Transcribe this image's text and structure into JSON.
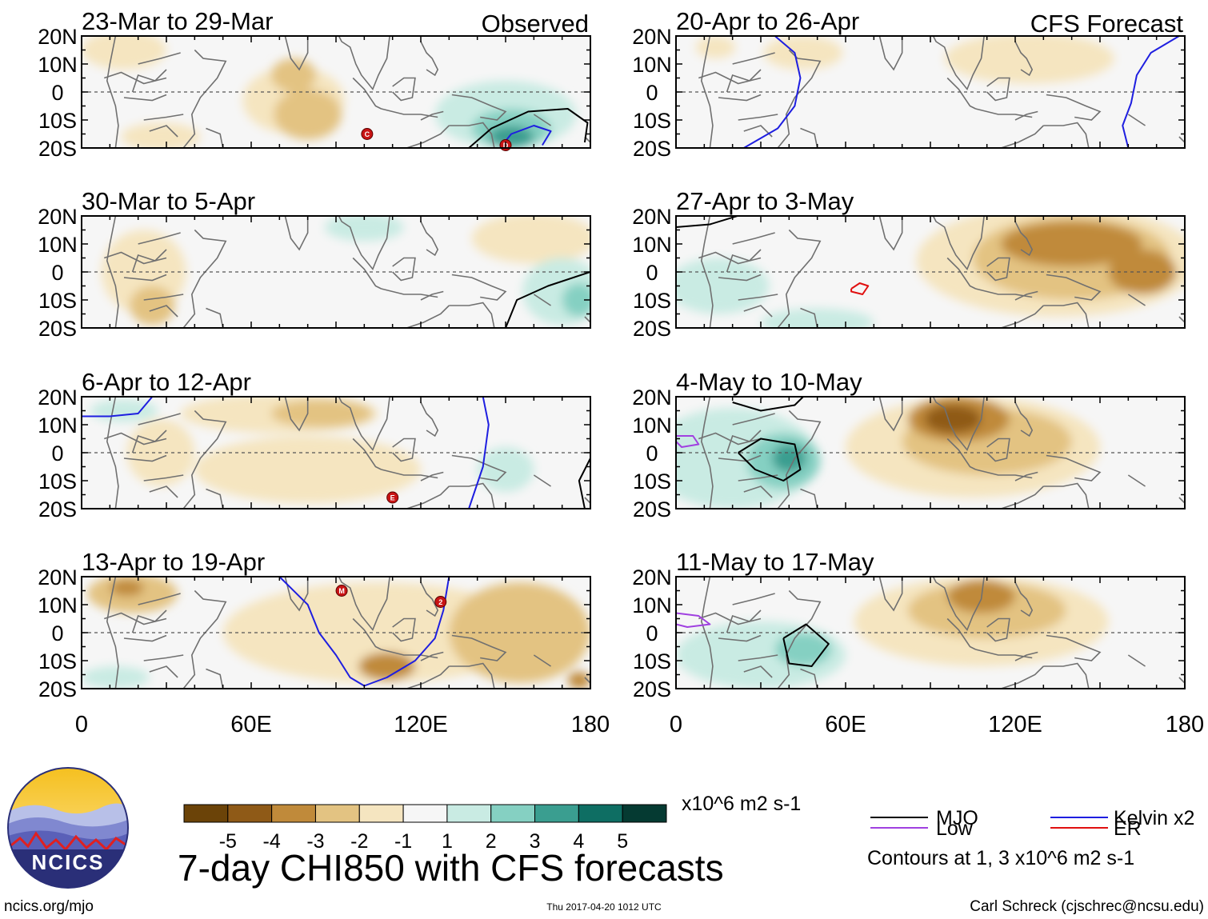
{
  "colors": {
    "neg5": "#6b4308",
    "neg4": "#8f5a17",
    "neg3": "#c08a3a",
    "neg2": "#e3c382",
    "neg1": "#f5e5c0",
    "neutral": "#f6f6f6",
    "pos1": "#c9ebe3",
    "pos2": "#85d0c2",
    "pos3": "#3a9e90",
    "pos4": "#0e6e63",
    "pos5": "#053a32",
    "mjo": "#000000",
    "kelvin": "#1e1ee0",
    "low": "#a040e0",
    "er": "#e01010",
    "land": "#707070",
    "storm": "#c81414"
  },
  "panels": [
    {
      "id": "p1",
      "column": "observed",
      "title": "23-Mar to 29-Mar",
      "corner_label": "Observed",
      "anomalies": [
        {
          "lon": 75,
          "lat": -3,
          "rlon": 18,
          "rlat": 12,
          "cat": "neg1"
        },
        {
          "lon": 80,
          "lat": -8,
          "rlon": 12,
          "rlat": 9,
          "cat": "neg2"
        },
        {
          "lon": 75,
          "lat": 6,
          "rlon": 8,
          "rlat": 6,
          "cat": "neg2"
        },
        {
          "lon": 15,
          "lat": 15,
          "rlon": 15,
          "rlat": 7,
          "cat": "neg1"
        },
        {
          "lon": 28,
          "lat": -16,
          "rlon": 14,
          "rlat": 5,
          "cat": "neg1"
        },
        {
          "lon": 150,
          "lat": -8,
          "rlon": 25,
          "rlat": 12,
          "cat": "pos1"
        },
        {
          "lon": 152,
          "lat": -13,
          "rlon": 14,
          "rlat": 7,
          "cat": "pos2"
        },
        {
          "lon": 152,
          "lat": -16,
          "rlon": 8,
          "rlat": 4,
          "cat": "pos3"
        }
      ],
      "contours": [
        {
          "type": "mjo",
          "points": [
            [
              137,
              -20
            ],
            [
              145,
              -13
            ],
            [
              158,
              -7
            ],
            [
              172,
              -6
            ],
            [
              179,
              -11
            ],
            [
              178,
              -18
            ]
          ]
        },
        {
          "type": "kelvin",
          "points": [
            [
              148,
              -20
            ],
            [
              152,
              -15
            ],
            [
              160,
              -12
            ],
            [
              166,
              -14
            ],
            [
              163,
              -19
            ]
          ]
        }
      ],
      "storms": [
        {
          "lon": 101,
          "lat": -15,
          "label": "C"
        },
        {
          "lon": 150,
          "lat": -19,
          "label": "D"
        }
      ]
    },
    {
      "id": "p2",
      "column": "forecast",
      "title": "20-Apr to 26-Apr",
      "corner_label": "CFS Forecast",
      "anomalies": [
        {
          "lon": 45,
          "lat": 14,
          "rlon": 14,
          "rlat": 6,
          "cat": "neg1"
        },
        {
          "lon": 125,
          "lat": 12,
          "rlon": 30,
          "rlat": 9,
          "cat": "neg1"
        },
        {
          "lon": 14,
          "lat": 16,
          "rlon": 7,
          "rlat": 4,
          "cat": "neg1"
        }
      ],
      "contours": [
        {
          "type": "kelvin",
          "points": [
            [
              35,
              20
            ],
            [
              42,
              14
            ],
            [
              44,
              5
            ],
            [
              42,
              -5
            ],
            [
              36,
              -13
            ],
            [
              24,
              -20
            ]
          ]
        },
        {
          "type": "kelvin",
          "points": [
            [
              178,
              20
            ],
            [
              168,
              14
            ],
            [
              163,
              6
            ],
            [
              161,
              -4
            ],
            [
              158,
              -12
            ],
            [
              160,
              -20
            ]
          ]
        }
      ],
      "storms": []
    },
    {
      "id": "p3",
      "column": "observed",
      "title": "30-Mar to 5-Apr",
      "corner_label": "",
      "anomalies": [
        {
          "lon": 22,
          "lat": 0,
          "rlon": 15,
          "rlat": 15,
          "cat": "neg1"
        },
        {
          "lon": 25,
          "lat": -12,
          "rlon": 8,
          "rlat": 7,
          "cat": "neg2"
        },
        {
          "lon": 160,
          "lat": 12,
          "rlon": 22,
          "rlat": 9,
          "cat": "neg1"
        },
        {
          "lon": 100,
          "lat": 16,
          "rlon": 14,
          "rlat": 5,
          "cat": "pos1"
        },
        {
          "lon": 170,
          "lat": -7,
          "rlon": 14,
          "rlat": 12,
          "cat": "pos1"
        },
        {
          "lon": 176,
          "lat": -10,
          "rlon": 6,
          "rlat": 6,
          "cat": "pos2"
        }
      ],
      "contours": [
        {
          "type": "mjo",
          "points": [
            [
              150,
              -20
            ],
            [
              154,
              -10
            ],
            [
              165,
              -5
            ],
            [
              180,
              0
            ]
          ]
        }
      ],
      "storms": []
    },
    {
      "id": "p4",
      "column": "forecast",
      "title": "27-Apr to 3-May",
      "corner_label": "",
      "anomalies": [
        {
          "lon": 135,
          "lat": 4,
          "rlon": 50,
          "rlat": 20,
          "cat": "neg1"
        },
        {
          "lon": 140,
          "lat": 5,
          "rlon": 35,
          "rlat": 15,
          "cat": "neg2"
        },
        {
          "lon": 140,
          "lat": 10,
          "rlon": 25,
          "rlat": 8,
          "cat": "neg3"
        },
        {
          "lon": 165,
          "lat": 0,
          "rlon": 12,
          "rlat": 8,
          "cat": "neg3"
        },
        {
          "lon": 15,
          "lat": -5,
          "rlon": 18,
          "rlat": 10,
          "cat": "pos1"
        },
        {
          "lon": 50,
          "lat": -18,
          "rlon": 20,
          "rlat": 5,
          "cat": "pos1"
        }
      ],
      "contours": [
        {
          "type": "mjo",
          "points": [
            [
              0,
              16
            ],
            [
              12,
              17
            ],
            [
              25,
              21
            ]
          ]
        },
        {
          "type": "er",
          "points": [
            [
              62,
              -6
            ],
            [
              65,
              -4
            ],
            [
              68,
              -5
            ],
            [
              66,
              -8
            ],
            [
              62,
              -7
            ],
            [
              62,
              -6
            ]
          ]
        }
      ],
      "storms": []
    },
    {
      "id": "p5",
      "column": "observed",
      "title": "6-Apr to 12-Apr",
      "corner_label": "",
      "anomalies": [
        {
          "lon": 70,
          "lat": 14,
          "rlon": 35,
          "rlat": 7,
          "cat": "neg1"
        },
        {
          "lon": 85,
          "lat": 14,
          "rlon": 18,
          "rlat": 5,
          "cat": "neg2"
        },
        {
          "lon": 80,
          "lat": -6,
          "rlon": 40,
          "rlat": 12,
          "cat": "neg1"
        },
        {
          "lon": 28,
          "lat": 0,
          "rlon": 12,
          "rlat": 12,
          "cat": "neg1"
        },
        {
          "lon": 150,
          "lat": -6,
          "rlon": 10,
          "rlat": 8,
          "cat": "pos1"
        },
        {
          "lon": 15,
          "lat": 15,
          "rlon": 12,
          "rlat": 4,
          "cat": "pos1"
        }
      ],
      "contours": [
        {
          "type": "kelvin",
          "points": [
            [
              0,
              13
            ],
            [
              10,
              13
            ],
            [
              20,
              14
            ],
            [
              25,
              20
            ]
          ]
        },
        {
          "type": "kelvin",
          "points": [
            [
              142,
              20
            ],
            [
              144,
              10
            ],
            [
              142,
              -5
            ],
            [
              137,
              -20
            ]
          ]
        },
        {
          "type": "mjo",
          "points": [
            [
              180,
              -2
            ],
            [
              176,
              -10
            ],
            [
              178,
              -20
            ]
          ]
        }
      ],
      "storms": [
        {
          "lon": 110,
          "lat": -16,
          "label": "E"
        }
      ]
    },
    {
      "id": "p6",
      "column": "forecast",
      "title": "4-May to 10-May",
      "corner_label": "",
      "anomalies": [
        {
          "lon": 105,
          "lat": 2,
          "rlon": 45,
          "rlat": 18,
          "cat": "neg1"
        },
        {
          "lon": 110,
          "lat": 4,
          "rlon": 30,
          "rlat": 12,
          "cat": "neg2"
        },
        {
          "lon": 100,
          "lat": 12,
          "rlon": 18,
          "rlat": 8,
          "cat": "neg3"
        },
        {
          "lon": 98,
          "lat": 12,
          "rlon": 10,
          "rlat": 5,
          "cat": "neg4"
        },
        {
          "lon": 20,
          "lat": -2,
          "rlon": 30,
          "rlat": 18,
          "cat": "pos1"
        },
        {
          "lon": 38,
          "lat": -3,
          "rlon": 13,
          "rlat": 10,
          "cat": "pos2"
        },
        {
          "lon": 40,
          "lat": -2,
          "rlon": 6,
          "rlat": 5,
          "cat": "pos3"
        }
      ],
      "contours": [
        {
          "type": "mjo",
          "points": [
            [
              22,
              0
            ],
            [
              30,
              5
            ],
            [
              42,
              3
            ],
            [
              44,
              -6
            ],
            [
              38,
              -10
            ],
            [
              28,
              -6
            ],
            [
              22,
              0
            ]
          ]
        },
        {
          "type": "mjo",
          "points": [
            [
              20,
              18
            ],
            [
              30,
              15
            ],
            [
              42,
              17
            ],
            [
              45,
              20
            ]
          ]
        },
        {
          "type": "low",
          "points": [
            [
              0,
              6
            ],
            [
              6,
              6
            ],
            [
              8,
              3
            ],
            [
              2,
              2
            ],
            [
              0,
              4
            ]
          ]
        }
      ],
      "storms": []
    },
    {
      "id": "p7",
      "column": "observed",
      "title": "13-Apr to 19-Apr",
      "corner_label": "",
      "anomalies": [
        {
          "lon": 105,
          "lat": 0,
          "rlon": 55,
          "rlat": 18,
          "cat": "neg1"
        },
        {
          "lon": 155,
          "lat": 0,
          "rlon": 25,
          "rlat": 18,
          "cat": "neg2"
        },
        {
          "lon": 108,
          "lat": -12,
          "rlon": 10,
          "rlat": 5,
          "cat": "neg3"
        },
        {
          "lon": 18,
          "lat": 14,
          "rlon": 16,
          "rlat": 7,
          "cat": "neg2"
        },
        {
          "lon": 16,
          "lat": 16,
          "rlon": 6,
          "rlat": 3,
          "cat": "neg3"
        },
        {
          "lon": 12,
          "lat": -16,
          "rlon": 12,
          "rlat": 4,
          "cat": "pos1"
        },
        {
          "lon": 176,
          "lat": -17,
          "rlon": 4,
          "rlat": 3,
          "cat": "neg3"
        }
      ],
      "contours": [
        {
          "type": "kelvin",
          "points": [
            [
              70,
              20
            ],
            [
              80,
              10
            ],
            [
              84,
              0
            ],
            [
              90,
              -8
            ],
            [
              95,
              -16
            ],
            [
              100,
              -19
            ],
            [
              108,
              -16
            ],
            [
              118,
              -10
            ],
            [
              125,
              -2
            ],
            [
              128,
              8
            ],
            [
              130,
              20
            ]
          ]
        }
      ],
      "storms": [
        {
          "lon": 92,
          "lat": 15,
          "label": "M"
        },
        {
          "lon": 127,
          "lat": 11,
          "label": "2"
        }
      ]
    },
    {
      "id": "p8",
      "column": "forecast",
      "title": "11-May to 17-May",
      "corner_label": "",
      "anomalies": [
        {
          "lon": 108,
          "lat": 4,
          "rlon": 45,
          "rlat": 16,
          "cat": "neg1"
        },
        {
          "lon": 110,
          "lat": 8,
          "rlon": 28,
          "rlat": 10,
          "cat": "neg2"
        },
        {
          "lon": 108,
          "lat": 13,
          "rlon": 12,
          "rlat": 6,
          "cat": "neg3"
        },
        {
          "lon": 30,
          "lat": -8,
          "rlon": 30,
          "rlat": 12,
          "cat": "pos1"
        },
        {
          "lon": 45,
          "lat": -6,
          "rlon": 10,
          "rlat": 6,
          "cat": "pos2"
        }
      ],
      "contours": [
        {
          "type": "mjo",
          "points": [
            [
              38,
              -2
            ],
            [
              46,
              3
            ],
            [
              54,
              -4
            ],
            [
              48,
              -12
            ],
            [
              40,
              -11
            ],
            [
              38,
              -2
            ]
          ]
        },
        {
          "type": "low",
          "points": [
            [
              0,
              7
            ],
            [
              8,
              6
            ],
            [
              12,
              3
            ],
            [
              4,
              2
            ],
            [
              0,
              3
            ]
          ]
        }
      ],
      "storms": []
    }
  ],
  "lat_labels": [
    "20N",
    "10N",
    "0",
    "10S",
    "20S"
  ],
  "lon_labels": [
    "0",
    "60E",
    "120E",
    "180"
  ],
  "colorbar": {
    "ticks": [
      "-5",
      "-4",
      "-3",
      "-2",
      "-1",
      "1",
      "2",
      "3",
      "4",
      "5"
    ],
    "units": "x10^6 m2 s-1"
  },
  "legend": {
    "mjo": "MJO",
    "kelvin": "Kelvin x2",
    "low": "Low",
    "er": "ER",
    "contours_note": "Contours at 1, 3 x10^6 m2 s-1"
  },
  "logo": {
    "text": "NCICS"
  },
  "main_title": "7-day CHI850 with CFS forecasts",
  "footer": {
    "url": "ncics.org/mjo",
    "timestamp": "Thu 2017-04-20 1012 UTC",
    "credit": "Carl Schreck (cjschrec@ncsu.edu)"
  }
}
